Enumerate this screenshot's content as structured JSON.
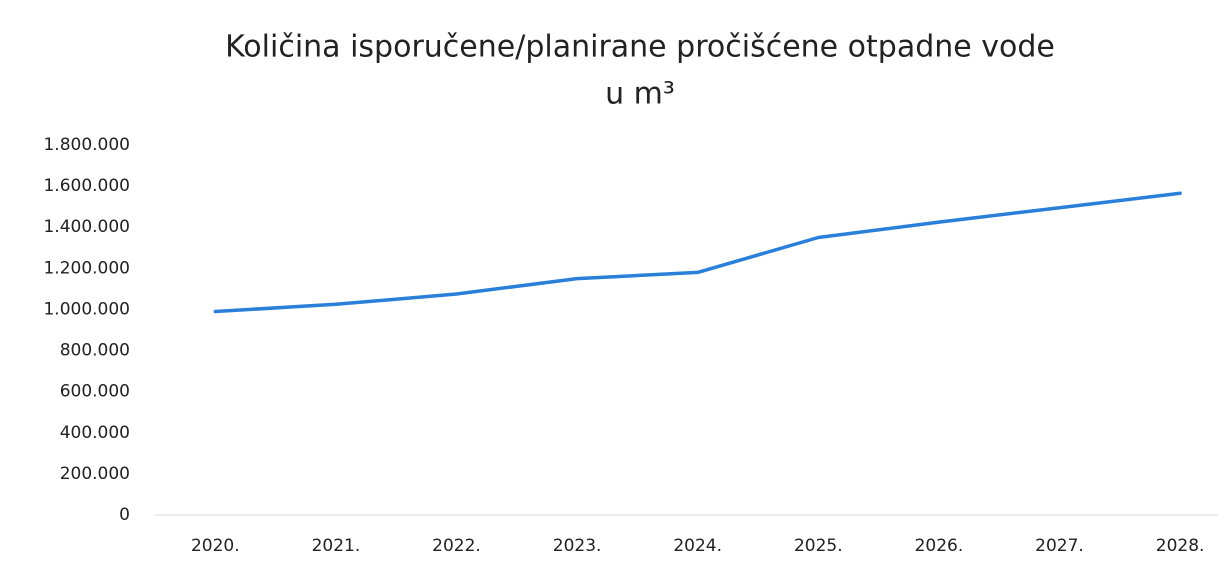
{
  "chart_data": {
    "type": "line",
    "title": [
      "Količina isporučene/planirane pročišćene otpadne vode",
      "u m³"
    ],
    "categories": [
      "2020.",
      "2021.",
      "2022.",
      "2023.",
      "2024.",
      "2025.",
      "2026.",
      "2027.",
      "2028."
    ],
    "values": [
      990000,
      1025000,
      1075000,
      1150000,
      1180000,
      1350000,
      1425000,
      1495000,
      1565000
    ],
    "color": "#2a7fd8",
    "ylim": [
      0,
      1800000
    ],
    "yticks": [
      0,
      {
        "value": 200000,
        "label": "200.000"
      },
      {
        "value": 400000,
        "label": "400.000"
      },
      {
        "value": 600000,
        "label": "600.000"
      },
      {
        "value": 800000,
        "label": "800.000"
      },
      {
        "value": 1000000,
        "label": "1.000.000"
      },
      {
        "value": 1200000,
        "label": "1.200.000"
      },
      {
        "value": 1400000,
        "label": "1.400.000"
      },
      {
        "value": 1600000,
        "label": "1.600.000"
      },
      {
        "value": 1800000,
        "label": "1.800.000"
      }
    ],
    "grid": false
  }
}
